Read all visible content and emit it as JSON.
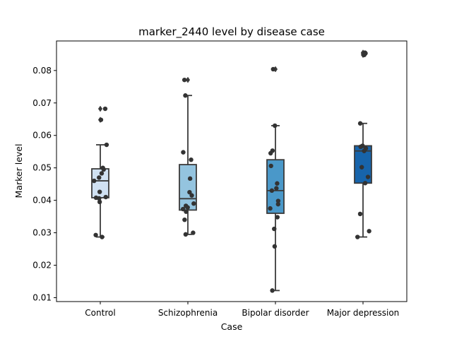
{
  "chart_data": {
    "type": "box",
    "title": "marker_2440 level by disease case",
    "xlabel": "Case",
    "ylabel": "Marker level",
    "ylim": [
      0.0088,
      0.0891
    ],
    "yticks": [
      0.01,
      0.02,
      0.03,
      0.04,
      0.05,
      0.06,
      0.07,
      0.08
    ],
    "ytick_labels": [
      "0.01",
      "0.02",
      "0.03",
      "0.04",
      "0.05",
      "0.06",
      "0.07",
      "0.08"
    ],
    "categories": [
      "Control",
      "Schizophrenia",
      "Bipolar disorder",
      "Major depression"
    ],
    "grid": false,
    "legend": "none",
    "boxes": [
      {
        "category": "Control",
        "color": "#d0e1f2",
        "whislo": 0.0287,
        "q1": 0.0408,
        "median": 0.046,
        "q3": 0.0497,
        "whishi": 0.0571,
        "fliers": [
          0.0682,
          0.0648
        ],
        "points": [
          0.0682,
          0.0648,
          0.0571,
          0.05,
          0.0495,
          0.0483,
          0.047,
          0.046,
          0.0426,
          0.041,
          0.0408,
          0.0406,
          0.0395,
          0.0293,
          0.0287
        ]
      },
      {
        "category": "Schizophrenia",
        "color": "#94c4df",
        "whislo": 0.0295,
        "q1": 0.037,
        "median": 0.0405,
        "q3": 0.051,
        "whishi": 0.0723,
        "fliers": [
          0.0771
        ],
        "points": [
          0.0771,
          0.0723,
          0.0548,
          0.0525,
          0.0467,
          0.0425,
          0.0415,
          0.039,
          0.0383,
          0.0378,
          0.0373,
          0.0365,
          0.034,
          0.03,
          0.0295
        ]
      },
      {
        "category": "Bipolar disorder",
        "color": "#4a98c9",
        "whislo": 0.0122,
        "q1": 0.036,
        "median": 0.043,
        "q3": 0.0525,
        "whishi": 0.063,
        "fliers": [
          0.0804
        ],
        "points": [
          0.0804,
          0.063,
          0.0553,
          0.0545,
          0.0506,
          0.0452,
          0.0437,
          0.043,
          0.0398,
          0.0388,
          0.0375,
          0.0348,
          0.0312,
          0.0258,
          0.0122
        ]
      },
      {
        "category": "Major depression",
        "color": "#1764ab",
        "whislo": 0.0287,
        "q1": 0.0453,
        "median": 0.0552,
        "q3": 0.0568,
        "whishi": 0.0637,
        "fliers": [
          0.0855,
          0.0853,
          0.0848
        ],
        "points": [
          0.0855,
          0.0853,
          0.0848,
          0.0637,
          0.0568,
          0.0565,
          0.056,
          0.0552,
          0.0502,
          0.0472,
          0.0453,
          0.0358,
          0.0305,
          0.0287
        ]
      }
    ]
  }
}
